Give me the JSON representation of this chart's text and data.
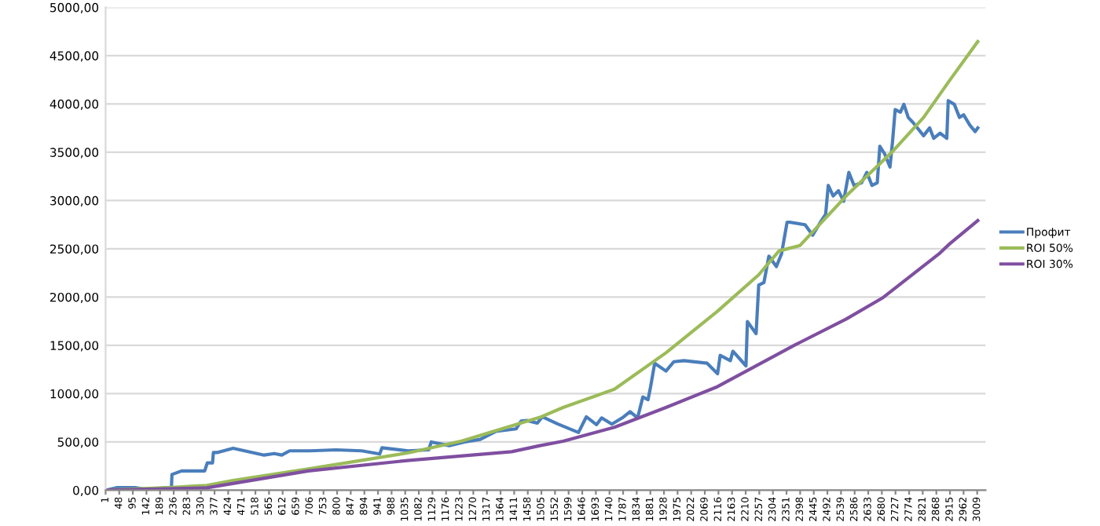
{
  "chart_data": {
    "type": "line",
    "xlim": [
      1,
      3038
    ],
    "xticks": [
      1,
      48,
      95,
      142,
      189,
      236,
      283,
      330,
      377,
      424,
      471,
      518,
      565,
      612,
      659,
      706,
      753,
      800,
      847,
      894,
      941,
      988,
      1035,
      1082,
      1129,
      1176,
      1223,
      1270,
      1317,
      1364,
      1411,
      1458,
      1505,
      1552,
      1599,
      1646,
      1693,
      1740,
      1787,
      1834,
      1881,
      1928,
      1975,
      2022,
      2069,
      2116,
      2163,
      2210,
      2257,
      2304,
      2351,
      2398,
      2445,
      2492,
      2539,
      2586,
      2633,
      2680,
      2727,
      2774,
      2821,
      2868,
      2915,
      2962,
      3009
    ],
    "ylim": [
      0,
      5000
    ],
    "yticks": [
      {
        "value": 0,
        "label": "0,00"
      },
      {
        "value": 500,
        "label": "500,00"
      },
      {
        "value": 1000,
        "label": "1000,00"
      },
      {
        "value": 1500,
        "label": "1500,00"
      },
      {
        "value": 2000,
        "label": "2000,00"
      },
      {
        "value": 2500,
        "label": "2500,00"
      },
      {
        "value": 3000,
        "label": "3000,00"
      },
      {
        "value": 3500,
        "label": "3500,00"
      },
      {
        "value": 4000,
        "label": "4000,00"
      },
      {
        "value": 4500,
        "label": "4500,00"
      },
      {
        "value": 5000,
        "label": "5000,00"
      }
    ],
    "grid": "y",
    "legend": "right",
    "marker": "none",
    "line_style": "solid",
    "series": [
      {
        "name": "Профит",
        "color": "#4a7ebb",
        "x": [
          1,
          41,
          103,
          139,
          219,
          228,
          230,
          263,
          343,
          352,
          370,
          373,
          388,
          441,
          548,
          583,
          609,
          636,
          707,
          796,
          885,
          947,
          955,
          1045,
          1116,
          1125,
          1187,
          1240,
          1294,
          1347,
          1418,
          1435,
          1455,
          1491,
          1508,
          1562,
          1633,
          1660,
          1695,
          1713,
          1748,
          1784,
          1811,
          1837,
          1855,
          1873,
          1882,
          1896,
          1935,
          1962,
          1997,
          2077,
          2113,
          2122,
          2157,
          2166,
          2211,
          2216,
          2246,
          2255,
          2273,
          2290,
          2316,
          2334,
          2353,
          2361,
          2415,
          2441,
          2468,
          2486,
          2495,
          2512,
          2530,
          2548,
          2566,
          2584,
          2610,
          2628,
          2646,
          2664,
          2673,
          2690,
          2708,
          2717,
          2726,
          2744,
          2756,
          2771,
          2788,
          2824,
          2845,
          2859,
          2881,
          2904,
          2909,
          2930,
          2948,
          2962,
          2984,
          3002,
          3011
        ],
        "values": [
          0,
          27,
          27,
          10,
          27,
          10,
          163,
          200,
          200,
          283,
          283,
          391,
          391,
          435,
          364,
          380,
          364,
          408,
          408,
          418,
          408,
          375,
          440,
          408,
          418,
          500,
          462,
          500,
          527,
          609,
          636,
          717,
          722,
          695,
          760,
          685,
          598,
          760,
          679,
          749,
          685,
          749,
          814,
          749,
          965,
          938,
          1073,
          1315,
          1234,
          1331,
          1342,
          1315,
          1207,
          1396,
          1342,
          1439,
          1288,
          1746,
          1622,
          2124,
          2151,
          2424,
          2316,
          2451,
          2776,
          2776,
          2749,
          2641,
          2776,
          2858,
          3156,
          3047,
          3102,
          2993,
          3291,
          3156,
          3183,
          3291,
          3156,
          3183,
          3562,
          3481,
          3346,
          3617,
          3942,
          3915,
          3996,
          3860,
          3806,
          3671,
          3752,
          3644,
          3698,
          3644,
          4034,
          3996,
          3860,
          3888,
          3779,
          3714,
          3752
        ]
      },
      {
        "name": "ROI 50%",
        "color": "#9bbb59",
        "x": [
          1,
          230,
          350,
          440,
          700,
          1050,
          1230,
          1500,
          1580,
          1757,
          1935,
          2113,
          2255,
          2325,
          2397,
          2557,
          2717,
          2824,
          2913,
          3011
        ],
        "values": [
          0,
          30,
          50,
          100,
          220,
          390,
          510,
          755,
          857,
          1046,
          1423,
          1854,
          2231,
          2478,
          2533,
          3047,
          3508,
          3860,
          4240,
          4646
        ]
      },
      {
        "name": "ROI 30%",
        "color": "#7f4fa0",
        "x": [
          1,
          350,
          700,
          1050,
          1402,
          1500,
          1580,
          1757,
          1935,
          2113,
          2380,
          2557,
          2681,
          2877,
          2913,
          3011
        ],
        "values": [
          0,
          25,
          200,
          310,
          399,
          462,
          507,
          652,
          857,
          1073,
          1504,
          1773,
          1989,
          2447,
          2549,
          2793
        ]
      }
    ]
  }
}
